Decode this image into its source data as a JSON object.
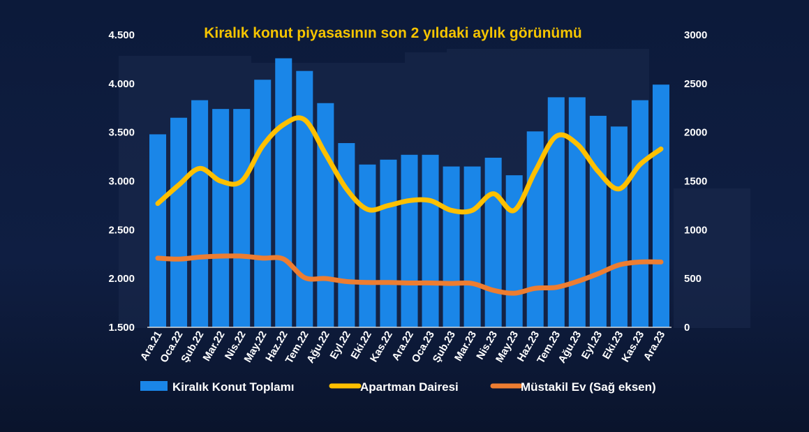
{
  "colors": {
    "bar": "#1a86e8",
    "apartment": "#ffc000",
    "house": "#ed7d31",
    "text": "#ffffff",
    "title": "#f5c400"
  },
  "chart_data": {
    "type": "bar",
    "title": "Kiralık konut piyasasının son 2 yıldaki aylık görünümü",
    "categories": [
      "Ara.21",
      "Oca.22",
      "Şub.22",
      "Mar.22",
      "Nis.22",
      "May.22",
      "Haz.22",
      "Tem.22",
      "Ağu.22",
      "Eyl.22",
      "Eki.22",
      "Kas.22",
      "Ara.22",
      "Oca.23",
      "Şub.23",
      "Mar.23",
      "Nis.23",
      "May.23",
      "Haz.23",
      "Tem.23",
      "Ağu.23",
      "Eyl.23",
      "Eki.23",
      "Kas.23",
      "Ara.23"
    ],
    "y_left": {
      "ylim": [
        1500,
        4500
      ],
      "ticks": [
        "1.500",
        "2.000",
        "2.500",
        "3.000",
        "3.500",
        "4.000",
        "4.500"
      ]
    },
    "y_right": {
      "ylim": [
        0,
        3000
      ],
      "ticks": [
        "0",
        "500",
        "1000",
        "1500",
        "2000",
        "2500",
        "3000"
      ]
    },
    "series": [
      {
        "name": "Kiralık Konut Toplamı",
        "type": "bar",
        "axis": "left",
        "values": [
          3480,
          3650,
          3830,
          3740,
          3740,
          4040,
          4260,
          4130,
          3800,
          3390,
          3170,
          3220,
          3270,
          3270,
          3150,
          3150,
          3240,
          3060,
          3510,
          3860,
          3860,
          3670,
          3560,
          3830,
          3990
        ]
      },
      {
        "name": "Apartman Dairesi",
        "type": "line",
        "axis": "right",
        "values": [
          1270,
          1460,
          1630,
          1500,
          1500,
          1860,
          2080,
          2130,
          1780,
          1420,
          1210,
          1250,
          1300,
          1300,
          1200,
          1200,
          1370,
          1200,
          1600,
          1960,
          1880,
          1600,
          1420,
          1670,
          1830
        ]
      },
      {
        "name": "Müstakil Ev (Sağ eksen)",
        "type": "line",
        "axis": "right",
        "values": [
          710,
          700,
          720,
          730,
          730,
          710,
          700,
          510,
          500,
          470,
          460,
          460,
          455,
          455,
          450,
          450,
          380,
          350,
          400,
          410,
          470,
          550,
          640,
          670,
          670
        ]
      }
    ],
    "legend": "bottom",
    "grid": false
  }
}
